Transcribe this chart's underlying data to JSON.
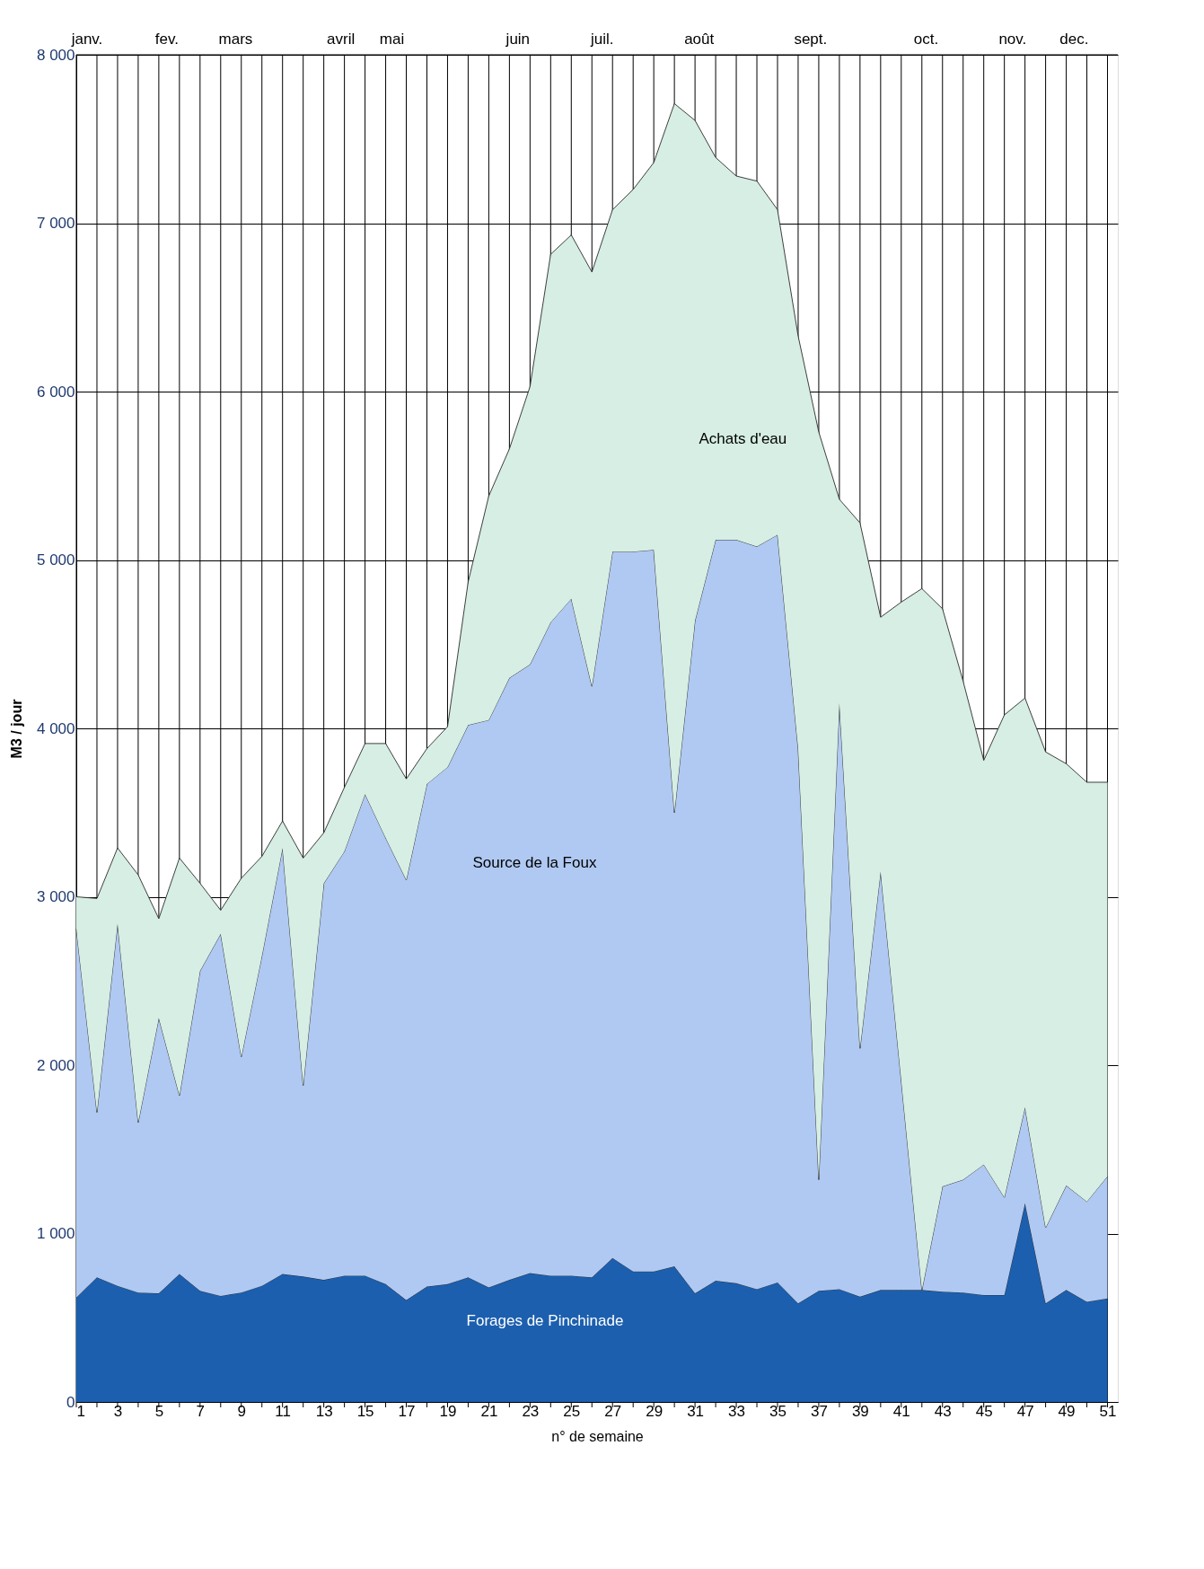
{
  "chart_data": {
    "type": "area",
    "stacked": true,
    "xlabel": "n° de semaine",
    "ylabel": "M3 / jour",
    "x": [
      1,
      2,
      3,
      4,
      5,
      6,
      7,
      8,
      9,
      10,
      11,
      12,
      13,
      14,
      15,
      16,
      17,
      18,
      19,
      20,
      21,
      22,
      23,
      24,
      25,
      26,
      27,
      28,
      29,
      30,
      31,
      32,
      33,
      34,
      35,
      36,
      37,
      38,
      39,
      40,
      41,
      42,
      43,
      44,
      45,
      46,
      47,
      48,
      49,
      50,
      51
    ],
    "series": [
      {
        "name": "Forages de Pinchinade",
        "color": "#1c5fae",
        "values": [
          620,
          740,
          690,
          650,
          645,
          760,
          660,
          630,
          650,
          690,
          760,
          745,
          725,
          750,
          750,
          700,
          605,
          685,
          700,
          740,
          680,
          725,
          765,
          750,
          750,
          740,
          855,
          775,
          775,
          805,
          645,
          720,
          705,
          670,
          710,
          585,
          660,
          670,
          625,
          665,
          665,
          665,
          655,
          650,
          635,
          635,
          1180,
          585,
          665,
          595,
          615
        ]
      },
      {
        "name": "Source de la Foux",
        "color": "#b0c9f2",
        "values": [
          2190,
          980,
          2150,
          1010,
          1635,
          1060,
          1900,
          2150,
          1400,
          1960,
          2530,
          1135,
          2355,
          2520,
          2860,
          2650,
          2495,
          2985,
          3070,
          3280,
          3370,
          3575,
          3615,
          3880,
          4020,
          3510,
          4195,
          4275,
          4285,
          2695,
          3995,
          4400,
          4415,
          4410,
          4440,
          3295,
          660,
          3480,
          1475,
          2485,
          1245,
          0,
          625,
          670,
          775,
          580,
          570,
          450,
          620,
          595,
          725
        ]
      },
      {
        "name": "Achats d'eau",
        "color": "#d6eee3",
        "values": [
          190,
          1270,
          450,
          1470,
          590,
          1410,
          520,
          140,
          1060,
          590,
          160,
          1350,
          300,
          380,
          300,
          560,
          600,
          210,
          240,
          850,
          1330,
          1360,
          1650,
          2185,
          2160,
          2460,
          2030,
          2150,
          2300,
          4210,
          2970,
          2270,
          2160,
          2170,
          1930,
          2450,
          4440,
          1210,
          3120,
          1510,
          2840,
          4165,
          3430,
          2960,
          2400,
          2865,
          2430,
          2825,
          2505,
          2490,
          2340
        ]
      }
    ],
    "xlim": [
      1,
      51.5
    ],
    "xticks": [
      1,
      {
        "value": 2,
        "label": null
      },
      3,
      {
        "value": 4,
        "label": null
      },
      5,
      {
        "value": 6,
        "label": null
      },
      7,
      {
        "value": 8,
        "label": null
      },
      9,
      {
        "value": 10,
        "label": null
      },
      11,
      {
        "value": 12,
        "label": null
      },
      13,
      {
        "value": 14,
        "label": null
      },
      15,
      {
        "value": 16,
        "label": null
      },
      17,
      {
        "value": 18,
        "label": null
      },
      19,
      {
        "value": 20,
        "label": null
      },
      21,
      {
        "value": 22,
        "label": null
      },
      23,
      {
        "value": 24,
        "label": null
      },
      25,
      {
        "value": 26,
        "label": null
      },
      27,
      {
        "value": 28,
        "label": null
      },
      29,
      {
        "value": 30,
        "label": null
      },
      31,
      {
        "value": 32,
        "label": null
      },
      33,
      {
        "value": 34,
        "label": null
      },
      35,
      {
        "value": 36,
        "label": null
      },
      37,
      {
        "value": 38,
        "label": null
      },
      39,
      {
        "value": 40,
        "label": null
      },
      41,
      {
        "value": 42,
        "label": null
      },
      43,
      {
        "value": 44,
        "label": null
      },
      45,
      {
        "value": 46,
        "label": null
      },
      47,
      {
        "value": 48,
        "label": null
      },
      49,
      {
        "value": 50,
        "label": null
      },
      51
    ],
    "annotations": [
      "janv.",
      "fev.",
      "mars",
      "avril",
      "mai",
      "juin",
      "juil.",
      "août",
      "sept.",
      "oct.",
      "nov.",
      "dec."
    ],
    "ylim": [
      0,
      8000
    ],
    "yticks": [
      0,
      {
        "value": 1000,
        "label": "1 000"
      },
      {
        "value": 2000,
        "label": "2 000"
      },
      {
        "value": 3000,
        "label": "3 000"
      },
      {
        "value": 4000,
        "label": "4 000"
      },
      {
        "value": 5000,
        "label": "5 000"
      },
      {
        "value": 6000,
        "label": "6 000"
      },
      {
        "value": 7000,
        "label": "7 000"
      },
      {
        "value": 8000,
        "label": "8 000"
      }
    ],
    "grid": true
  }
}
